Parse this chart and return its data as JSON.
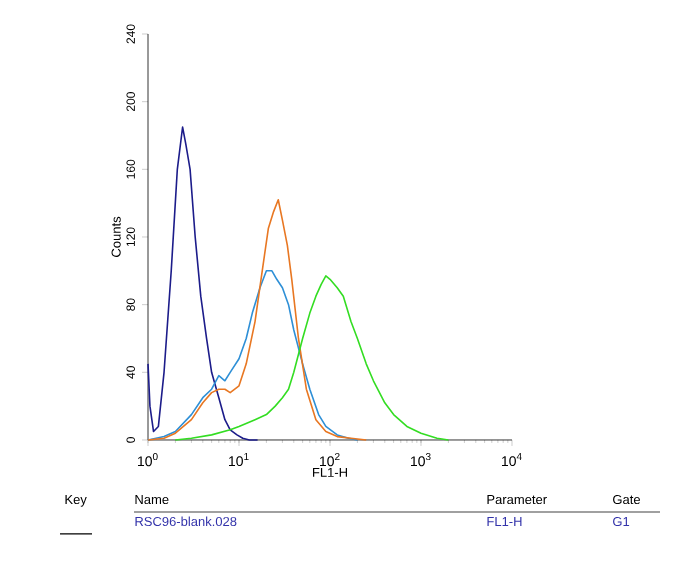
{
  "chart_data": {
    "type": "line",
    "xlabel": "FL1-H",
    "ylabel": "Counts",
    "log": "x",
    "xlim": [
      1,
      10000
    ],
    "ylim": [
      0,
      240
    ],
    "xticks": [
      {
        "value": 1,
        "label": "10$^{0}$"
      },
      {
        "value": 10,
        "label": "10$^{1}$"
      },
      {
        "value": 100,
        "label": "10$^{2}$"
      },
      {
        "value": 1000,
        "label": "10$^{3}$"
      },
      {
        "value": 10000,
        "label": "10$^{4}$"
      }
    ],
    "yticks": [
      0,
      40,
      80,
      120,
      160,
      200,
      240
    ],
    "series": [
      {
        "color": "#1c1c8a",
        "x": [
          1,
          1.05,
          1.15,
          1.3,
          1.5,
          1.8,
          2.1,
          2.4,
          2.6,
          2.9,
          3.3,
          3.8,
          4.4,
          5,
          6,
          7,
          8,
          9.5,
          11,
          13,
          16
        ],
        "values": [
          45,
          20,
          5,
          8,
          40,
          100,
          160,
          185,
          175,
          160,
          120,
          85,
          60,
          40,
          25,
          12,
          6,
          3,
          1,
          0,
          0
        ]
      },
      {
        "color": "#2e8fd6",
        "x": [
          1,
          1.5,
          2,
          3,
          4,
          5,
          6,
          7,
          8,
          10,
          12,
          14,
          17,
          20,
          23,
          26,
          30,
          35,
          40,
          50,
          60,
          75,
          90,
          120,
          160,
          200
        ],
        "values": [
          0,
          2,
          5,
          15,
          25,
          30,
          38,
          35,
          40,
          48,
          60,
          75,
          90,
          100,
          100,
          95,
          90,
          80,
          65,
          45,
          30,
          15,
          8,
          3,
          1,
          0
        ]
      },
      {
        "color": "#e87722",
        "x": [
          1,
          1.5,
          2,
          3,
          4,
          5,
          6,
          7,
          8,
          10,
          12,
          15,
          18,
          21,
          24,
          27,
          30,
          34,
          38,
          45,
          55,
          70,
          90,
          120,
          170,
          250
        ],
        "values": [
          0,
          1,
          4,
          12,
          22,
          28,
          30,
          30,
          28,
          32,
          45,
          70,
          100,
          125,
          135,
          142,
          130,
          115,
          95,
          60,
          30,
          12,
          5,
          2,
          1,
          0
        ]
      },
      {
        "color": "#33dd22",
        "x": [
          2,
          3,
          5,
          8,
          10,
          15,
          20,
          25,
          30,
          35,
          40,
          50,
          60,
          70,
          80,
          90,
          100,
          120,
          140,
          170,
          200,
          250,
          300,
          400,
          500,
          700,
          1000,
          1500,
          2000
        ],
        "values": [
          0,
          1,
          3,
          6,
          8,
          12,
          15,
          20,
          25,
          30,
          40,
          60,
          75,
          85,
          92,
          97,
          95,
          90,
          85,
          70,
          60,
          45,
          35,
          22,
          15,
          8,
          4,
          1,
          0
        ]
      }
    ],
    "annotations": [
      "Key",
      "Name",
      "Parameter",
      "Gate",
      "RSC96-blank.028",
      "FL1-H",
      "G1"
    ]
  }
}
